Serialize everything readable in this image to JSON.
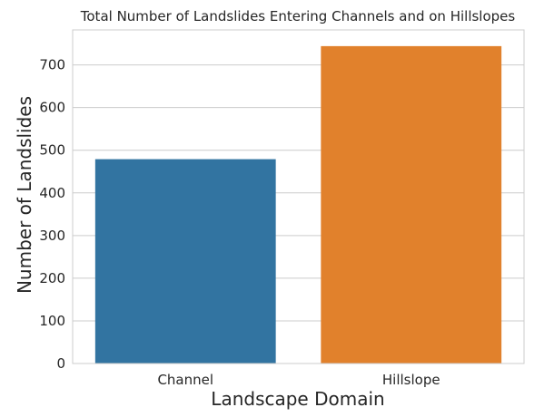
{
  "chart_data": {
    "type": "bar",
    "title": "Total Number of Landslides Entering Channels and on Hillslopes",
    "xlabel": "Landscape Domain",
    "ylabel": "Number of Landslides",
    "categories": [
      "Channel",
      "Hillslope"
    ],
    "values": [
      479,
      744
    ],
    "colors": [
      "#3274a1",
      "#e1812c"
    ],
    "ylim": [
      0,
      782
    ],
    "yticks": [
      0,
      100,
      200,
      300,
      400,
      500,
      600,
      700
    ],
    "grid": "horizontal",
    "background": "#ffffff",
    "grid_color": "#cccccc"
  }
}
